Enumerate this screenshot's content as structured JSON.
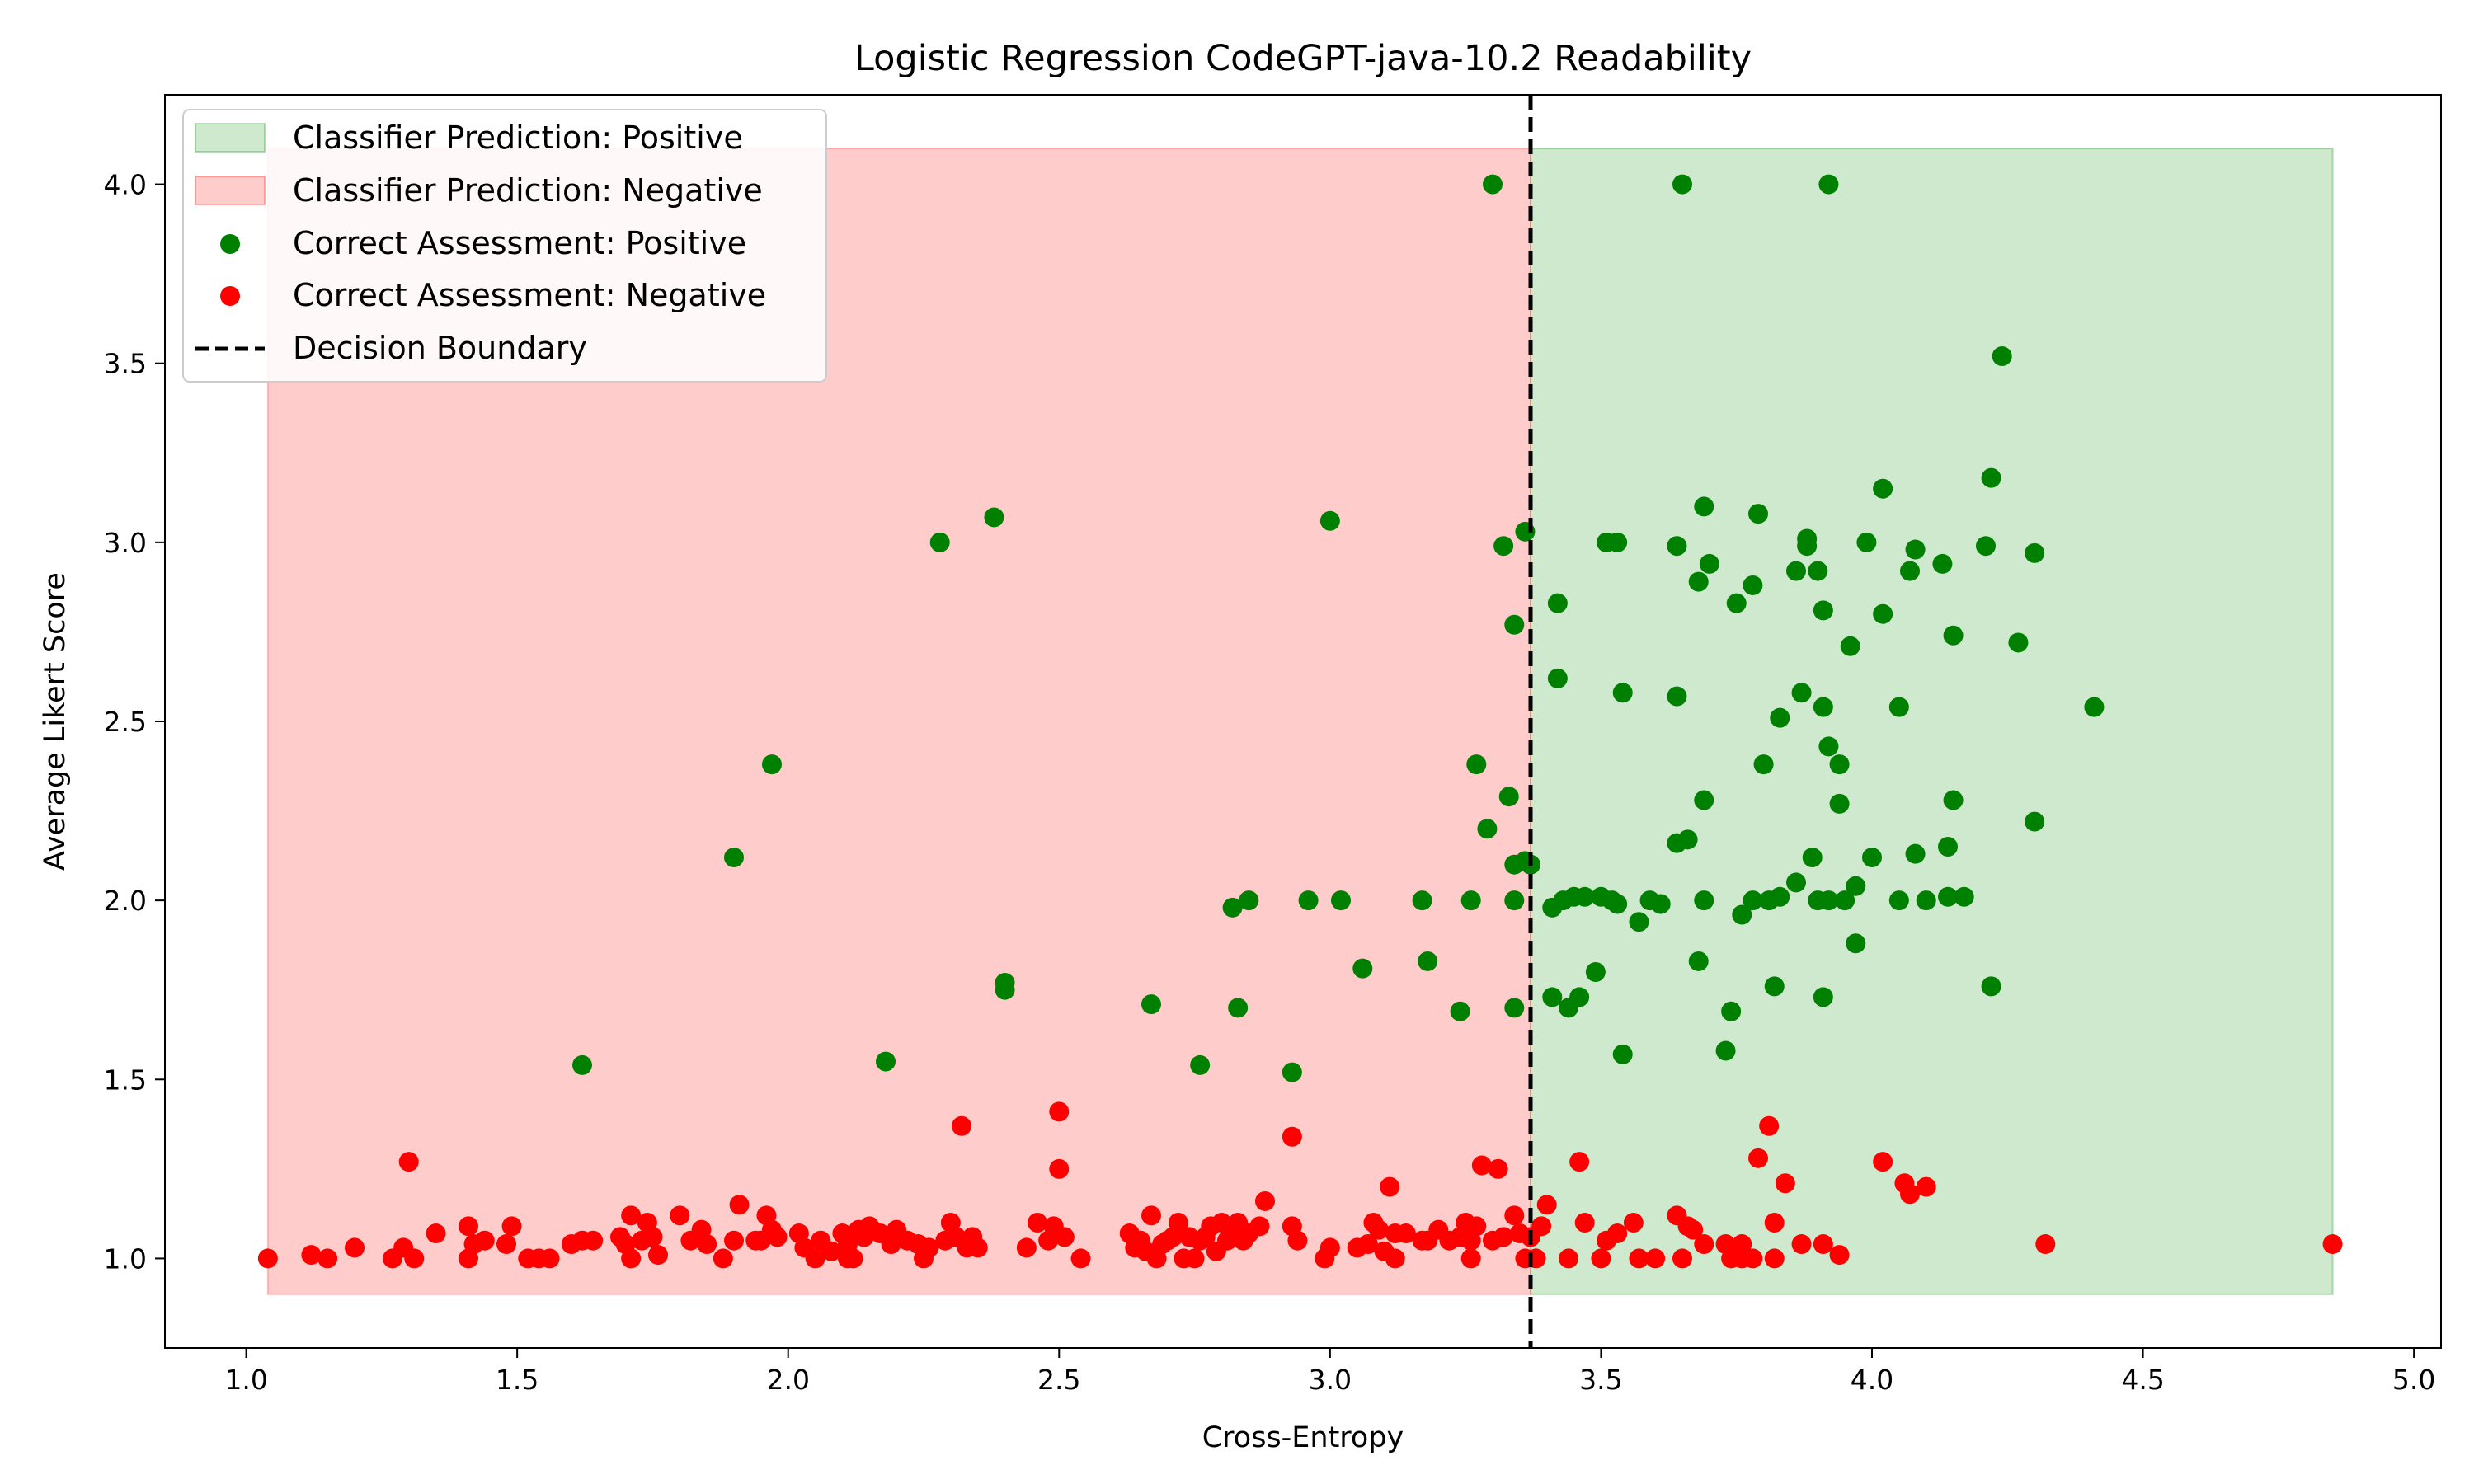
{
  "chart_data": {
    "type": "scatter",
    "title": "Logistic Regression CodeGPT-java-10.2 Readability",
    "xlabel": "Cross-Entropy",
    "ylabel": "Average Likert Score",
    "xlim": [
      0.85,
      5.05
    ],
    "ylim": [
      0.75,
      4.25
    ],
    "xticks": [
      "1.0",
      "1.5",
      "2.0",
      "2.5",
      "3.0",
      "3.5",
      "4.0",
      "4.5",
      "5.0"
    ],
    "yticks": [
      "1.0",
      "1.5",
      "2.0",
      "2.5",
      "3.0",
      "3.5",
      "4.0"
    ],
    "grid": false,
    "legend_position": "top-left",
    "decision_boundary": 3.37,
    "regions": [
      {
        "name": "Classifier Prediction: Positive",
        "x": [
          3.37,
          4.85
        ],
        "y": [
          0.9,
          4.1
        ],
        "color": "#2ca02c"
      },
      {
        "name": "Classifier Prediction: Negative",
        "x": [
          1.04,
          3.37
        ],
        "y": [
          0.9,
          4.1
        ],
        "color": "#ff5555"
      }
    ],
    "series": [
      {
        "name": "Correct Assessment: Positive",
        "color": "#008000",
        "points": [
          [
            1.62,
            1.54
          ],
          [
            1.9,
            2.12
          ],
          [
            1.97,
            2.38
          ],
          [
            2.18,
            1.55
          ],
          [
            2.28,
            3.0
          ],
          [
            2.38,
            3.07
          ],
          [
            2.4,
            1.77
          ],
          [
            2.4,
            1.75
          ],
          [
            2.67,
            1.71
          ],
          [
            2.76,
            1.54
          ],
          [
            2.82,
            1.98
          ],
          [
            2.83,
            1.7
          ],
          [
            2.85,
            2.0
          ],
          [
            2.93,
            1.52
          ],
          [
            2.96,
            2.0
          ],
          [
            3.0,
            3.06
          ],
          [
            3.02,
            2.0
          ],
          [
            3.06,
            1.81
          ],
          [
            3.17,
            2.0
          ],
          [
            3.18,
            1.83
          ],
          [
            3.24,
            1.69
          ],
          [
            3.26,
            2.0
          ],
          [
            3.27,
            2.38
          ],
          [
            3.29,
            2.2
          ],
          [
            3.3,
            4.0
          ],
          [
            3.32,
            2.99
          ],
          [
            3.33,
            2.29
          ],
          [
            3.34,
            2.77
          ],
          [
            3.34,
            2.1
          ],
          [
            3.34,
            2.0
          ],
          [
            3.34,
            1.7
          ],
          [
            3.36,
            3.03
          ],
          [
            3.36,
            2.11
          ],
          [
            3.37,
            2.1
          ],
          [
            3.41,
            1.73
          ],
          [
            3.41,
            1.98
          ],
          [
            3.42,
            2.83
          ],
          [
            3.42,
            2.62
          ],
          [
            3.43,
            2.0
          ],
          [
            3.44,
            1.7
          ],
          [
            3.45,
            2.01
          ],
          [
            3.46,
            1.73
          ],
          [
            3.47,
            2.01
          ],
          [
            3.49,
            1.8
          ],
          [
            3.5,
            2.01
          ],
          [
            3.51,
            3.0
          ],
          [
            3.52,
            2.0
          ],
          [
            3.53,
            3.0
          ],
          [
            3.53,
            1.99
          ],
          [
            3.54,
            2.58
          ],
          [
            3.54,
            1.57
          ],
          [
            3.57,
            1.94
          ],
          [
            3.59,
            2.0
          ],
          [
            3.61,
            1.99
          ],
          [
            3.64,
            2.99
          ],
          [
            3.64,
            2.57
          ],
          [
            3.64,
            2.16
          ],
          [
            3.65,
            4.0
          ],
          [
            3.66,
            2.17
          ],
          [
            3.68,
            2.89
          ],
          [
            3.68,
            1.83
          ],
          [
            3.69,
            3.1
          ],
          [
            3.69,
            2.28
          ],
          [
            3.69,
            2.0
          ],
          [
            3.7,
            2.94
          ],
          [
            3.73,
            1.58
          ],
          [
            3.74,
            1.69
          ],
          [
            3.75,
            2.83
          ],
          [
            3.76,
            1.96
          ],
          [
            3.78,
            2.88
          ],
          [
            3.78,
            2.0
          ],
          [
            3.79,
            3.08
          ],
          [
            3.8,
            2.38
          ],
          [
            3.81,
            2.0
          ],
          [
            3.82,
            1.76
          ],
          [
            3.83,
            2.51
          ],
          [
            3.83,
            2.01
          ],
          [
            3.86,
            2.92
          ],
          [
            3.86,
            2.05
          ],
          [
            3.87,
            2.58
          ],
          [
            3.88,
            2.99
          ],
          [
            3.88,
            3.01
          ],
          [
            3.89,
            2.12
          ],
          [
            3.9,
            2.92
          ],
          [
            3.9,
            2.0
          ],
          [
            3.91,
            2.54
          ],
          [
            3.91,
            2.81
          ],
          [
            3.91,
            1.73
          ],
          [
            3.92,
            2.0
          ],
          [
            3.92,
            2.43
          ],
          [
            3.92,
            4.0
          ],
          [
            3.94,
            2.38
          ],
          [
            3.94,
            2.27
          ],
          [
            3.95,
            2.0
          ],
          [
            3.96,
            2.71
          ],
          [
            3.97,
            2.04
          ],
          [
            3.97,
            1.88
          ],
          [
            3.99,
            3.0
          ],
          [
            4.0,
            2.12
          ],
          [
            4.02,
            2.8
          ],
          [
            4.02,
            3.15
          ],
          [
            4.05,
            2.0
          ],
          [
            4.05,
            2.54
          ],
          [
            4.07,
            2.92
          ],
          [
            4.08,
            2.98
          ],
          [
            4.08,
            2.13
          ],
          [
            4.1,
            2.0
          ],
          [
            4.13,
            2.94
          ],
          [
            4.14,
            2.15
          ],
          [
            4.14,
            2.01
          ],
          [
            4.15,
            2.28
          ],
          [
            4.15,
            2.74
          ],
          [
            4.17,
            2.01
          ],
          [
            4.21,
            2.99
          ],
          [
            4.22,
            1.76
          ],
          [
            4.22,
            3.18
          ],
          [
            4.24,
            3.52
          ],
          [
            4.27,
            2.72
          ],
          [
            4.3,
            2.22
          ],
          [
            4.3,
            2.97
          ],
          [
            4.41,
            2.54
          ]
        ]
      },
      {
        "name": "Correct Assessment: Negative",
        "color": "#ff0000",
        "points": [
          [
            1.04,
            1.0
          ],
          [
            1.12,
            1.01
          ],
          [
            1.15,
            1.0
          ],
          [
            1.2,
            1.03
          ],
          [
            1.27,
            1.0
          ],
          [
            1.29,
            1.03
          ],
          [
            1.3,
            1.27
          ],
          [
            1.31,
            1.0
          ],
          [
            1.35,
            1.07
          ],
          [
            1.41,
            1.09
          ],
          [
            1.41,
            1.0
          ],
          [
            1.42,
            1.04
          ],
          [
            1.44,
            1.05
          ],
          [
            1.48,
            1.04
          ],
          [
            1.49,
            1.09
          ],
          [
            1.52,
            1.0
          ],
          [
            1.54,
            1.0
          ],
          [
            1.56,
            1.0
          ],
          [
            1.6,
            1.04
          ],
          [
            1.62,
            1.05
          ],
          [
            1.64,
            1.05
          ],
          [
            1.69,
            1.06
          ],
          [
            1.7,
            1.04
          ],
          [
            1.71,
            1.0
          ],
          [
            1.71,
            1.12
          ],
          [
            1.73,
            1.05
          ],
          [
            1.74,
            1.1
          ],
          [
            1.75,
            1.06
          ],
          [
            1.76,
            1.01
          ],
          [
            1.8,
            1.12
          ],
          [
            1.82,
            1.05
          ],
          [
            1.84,
            1.08
          ],
          [
            1.85,
            1.04
          ],
          [
            1.88,
            1.0
          ],
          [
            1.9,
            1.05
          ],
          [
            1.91,
            1.15
          ],
          [
            1.94,
            1.05
          ],
          [
            1.95,
            1.05
          ],
          [
            1.96,
            1.12
          ],
          [
            1.97,
            1.08
          ],
          [
            1.98,
            1.06
          ],
          [
            2.02,
            1.07
          ],
          [
            2.03,
            1.03
          ],
          [
            2.05,
            1.0
          ],
          [
            2.06,
            1.05
          ],
          [
            2.08,
            1.02
          ],
          [
            2.1,
            1.07
          ],
          [
            2.11,
            1.0
          ],
          [
            2.11,
            1.04
          ],
          [
            2.12,
            1.0
          ],
          [
            2.13,
            1.08
          ],
          [
            2.14,
            1.06
          ],
          [
            2.15,
            1.09
          ],
          [
            2.17,
            1.07
          ],
          [
            2.19,
            1.04
          ],
          [
            2.2,
            1.08
          ],
          [
            2.22,
            1.05
          ],
          [
            2.24,
            1.04
          ],
          [
            2.25,
            1.0
          ],
          [
            2.26,
            1.03
          ],
          [
            2.29,
            1.05
          ],
          [
            2.3,
            1.1
          ],
          [
            2.31,
            1.06
          ],
          [
            2.32,
            1.37
          ],
          [
            2.33,
            1.03
          ],
          [
            2.34,
            1.06
          ],
          [
            2.35,
            1.03
          ],
          [
            2.44,
            1.03
          ],
          [
            2.46,
            1.1
          ],
          [
            2.48,
            1.05
          ],
          [
            2.49,
            1.09
          ],
          [
            2.5,
            1.41
          ],
          [
            2.5,
            1.25
          ],
          [
            2.51,
            1.06
          ],
          [
            2.54,
            1.0
          ],
          [
            2.63,
            1.07
          ],
          [
            2.64,
            1.03
          ],
          [
            2.65,
            1.05
          ],
          [
            2.66,
            1.02
          ],
          [
            2.67,
            1.12
          ],
          [
            2.68,
            1.0
          ],
          [
            2.69,
            1.04
          ],
          [
            2.7,
            1.05
          ],
          [
            2.71,
            1.06
          ],
          [
            2.72,
            1.1
          ],
          [
            2.73,
            1.0
          ],
          [
            2.74,
            1.06
          ],
          [
            2.75,
            1.0
          ],
          [
            2.76,
            1.05
          ],
          [
            2.77,
            1.06
          ],
          [
            2.78,
            1.09
          ],
          [
            2.79,
            1.02
          ],
          [
            2.8,
            1.1
          ],
          [
            2.81,
            1.05
          ],
          [
            2.82,
            1.08
          ],
          [
            2.83,
            1.1
          ],
          [
            2.84,
            1.05
          ],
          [
            2.85,
            1.07
          ],
          [
            2.87,
            1.09
          ],
          [
            2.88,
            1.16
          ],
          [
            2.93,
            1.34
          ],
          [
            2.93,
            1.09
          ],
          [
            2.94,
            1.05
          ],
          [
            2.99,
            1.0
          ],
          [
            3.0,
            1.03
          ],
          [
            3.05,
            1.03
          ],
          [
            3.07,
            1.04
          ],
          [
            3.08,
            1.1
          ],
          [
            3.09,
            1.08
          ],
          [
            3.1,
            1.02
          ],
          [
            3.11,
            1.2
          ],
          [
            3.12,
            1.07
          ],
          [
            3.12,
            1.0
          ],
          [
            3.14,
            1.07
          ],
          [
            3.17,
            1.05
          ],
          [
            3.18,
            1.05
          ],
          [
            3.2,
            1.08
          ],
          [
            3.22,
            1.05
          ],
          [
            3.24,
            1.06
          ],
          [
            3.25,
            1.1
          ],
          [
            3.26,
            1.0
          ],
          [
            3.26,
            1.05
          ],
          [
            3.27,
            1.09
          ],
          [
            3.28,
            1.26
          ],
          [
            3.3,
            1.05
          ],
          [
            3.31,
            1.25
          ],
          [
            3.32,
            1.06
          ],
          [
            3.34,
            1.12
          ],
          [
            3.35,
            1.07
          ],
          [
            3.36,
            1.0
          ],
          [
            3.37,
            1.06
          ],
          [
            3.38,
            1.0
          ],
          [
            3.39,
            1.09
          ],
          [
            3.4,
            1.15
          ],
          [
            3.44,
            1.0
          ],
          [
            3.46,
            1.27
          ],
          [
            3.47,
            1.1
          ],
          [
            3.5,
            1.0
          ],
          [
            3.51,
            1.05
          ],
          [
            3.53,
            1.07
          ],
          [
            3.56,
            1.1
          ],
          [
            3.57,
            1.0
          ],
          [
            3.6,
            1.0
          ],
          [
            3.64,
            1.12
          ],
          [
            3.65,
            1.0
          ],
          [
            3.66,
            1.09
          ],
          [
            3.67,
            1.08
          ],
          [
            3.69,
            1.04
          ],
          [
            3.73,
            1.04
          ],
          [
            3.74,
            1.0
          ],
          [
            3.76,
            1.0
          ],
          [
            3.76,
            1.04
          ],
          [
            3.78,
            1.0
          ],
          [
            3.79,
            1.28
          ],
          [
            3.81,
            1.37
          ],
          [
            3.82,
            1.1
          ],
          [
            3.82,
            1.0
          ],
          [
            3.84,
            1.21
          ],
          [
            3.87,
            1.04
          ],
          [
            3.91,
            1.04
          ],
          [
            3.94,
            1.01
          ],
          [
            4.02,
            1.27
          ],
          [
            4.06,
            1.21
          ],
          [
            4.07,
            1.18
          ],
          [
            4.1,
            1.2
          ],
          [
            4.32,
            1.04
          ],
          [
            4.85,
            1.04
          ]
        ]
      }
    ],
    "legend": [
      "Classifier Prediction: Positive",
      "Classifier Prediction: Negative",
      "Correct Assessment: Positive",
      "Correct Assessment: Negative",
      "Decision Boundary"
    ]
  }
}
